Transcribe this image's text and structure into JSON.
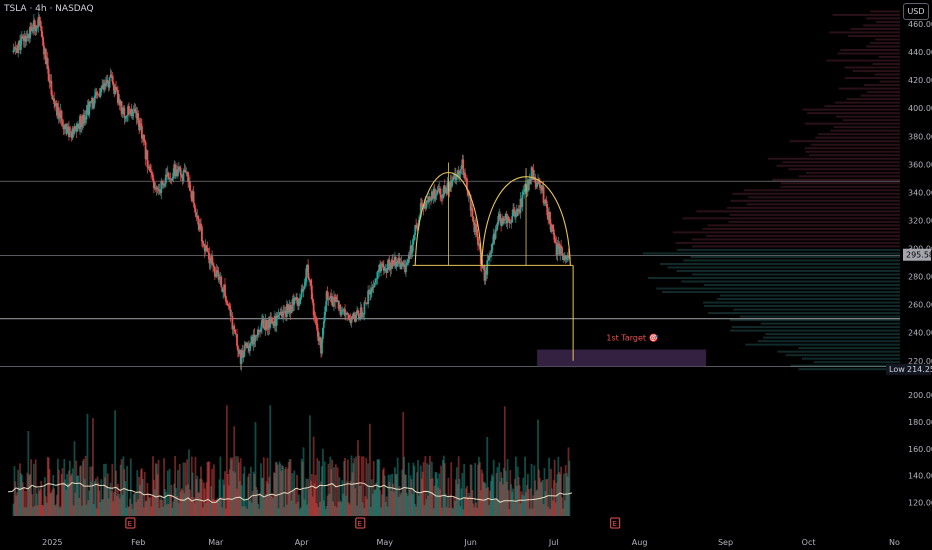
{
  "header": {
    "symbol": "TSLA · 4h · NASDAQ",
    "currency": "USD"
  },
  "colors": {
    "up": "#26a69a",
    "down": "#ef5350",
    "pattern": "#e6c55a",
    "level": "#b2b5be",
    "target_box": "#4a2f5e",
    "volume_ma": "#e8dcc4",
    "price_tag": "#a5a6ad"
  },
  "chart_data": {
    "type": "candlestick",
    "title": "",
    "price_axis_ticks": [
      460,
      440,
      420,
      400,
      380,
      360,
      340,
      320,
      300,
      280,
      260,
      240,
      220
    ],
    "volume_axis_ticks": [
      200,
      180,
      160,
      140,
      120
    ],
    "time_axis_labels": [
      "2025",
      "Feb",
      "Mar",
      "Apr",
      "May",
      "Jun",
      "Jul",
      "Aug",
      "Sep",
      "Oct",
      "No"
    ],
    "ylim": [
      212,
      470
    ],
    "price_path": [
      [
        "2024-12-18",
        440
      ],
      [
        "2024-12-27",
        462
      ],
      [
        "2025-01-02",
        400
      ],
      [
        "2025-01-08",
        380
      ],
      [
        "2025-01-14",
        400
      ],
      [
        "2025-01-22",
        420
      ],
      [
        "2025-01-27",
        395
      ],
      [
        "2025-01-31",
        400
      ],
      [
        "2025-02-07",
        340
      ],
      [
        "2025-02-14",
        355
      ],
      [
        "2025-02-19",
        350
      ],
      [
        "2025-02-25",
        300
      ],
      [
        "2025-03-04",
        270
      ],
      [
        "2025-03-10",
        222
      ],
      [
        "2025-03-17",
        245
      ],
      [
        "2025-03-24",
        250
      ],
      [
        "2025-03-31",
        265
      ],
      [
        "2025-04-03",
        285
      ],
      [
        "2025-04-08",
        225
      ],
      [
        "2025-04-10",
        270
      ],
      [
        "2025-04-17",
        250
      ],
      [
        "2025-04-23",
        255
      ],
      [
        "2025-04-29",
        285
      ],
      [
        "2025-05-05",
        290
      ],
      [
        "2025-05-09",
        285
      ],
      [
        "2025-05-14",
        330
      ],
      [
        "2025-05-20",
        340
      ],
      [
        "2025-05-23",
        340
      ],
      [
        "2025-05-29",
        360
      ],
      [
        "2025-06-04",
        300
      ],
      [
        "2025-06-06",
        280
      ],
      [
        "2025-06-11",
        320
      ],
      [
        "2025-06-18",
        325
      ],
      [
        "2025-06-23",
        355
      ],
      [
        "2025-06-27",
        340
      ],
      [
        "2025-07-02",
        300
      ],
      [
        "2025-07-07",
        293
      ]
    ],
    "last_price": "295.58",
    "low_label": "Low",
    "low_price": "214.25",
    "horizontal_levels": [
      348,
      295,
      250,
      216
    ],
    "pattern": {
      "name": "double top",
      "neckline": 288,
      "arch1": {
        "start": "2025-05-12",
        "end": "2025-06-05",
        "peak": 362
      },
      "arch2": {
        "start": "2025-06-05",
        "end": "2025-07-07",
        "peak": 358
      },
      "drop_to": 220
    },
    "target": {
      "label": "1st Target 🎯",
      "low": 216,
      "high": 228,
      "x_start": "2025-06-25",
      "x_end": "2025-08-25"
    },
    "earnings_markers": [
      "E",
      "E",
      "E"
    ],
    "volume_scale_note": ""
  }
}
